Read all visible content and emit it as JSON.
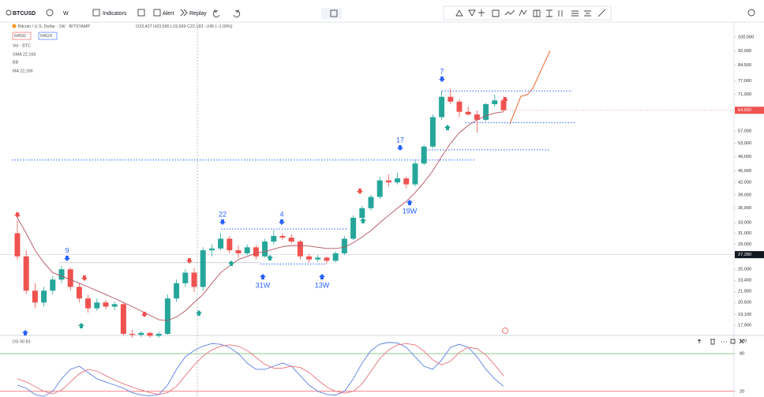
{
  "toolbar": {
    "symbol": "BTCUSD",
    "interval": "W",
    "indicators": "Indicators",
    "alert": "Alert",
    "replay": "Replay"
  },
  "legend": {
    "title": "Bitcoin / U.S. Dollar · 1W · BITSTAMP",
    "ohlc": "O23,427 H23,590 L19,569 C22,183 −245 (−1.09%)",
    "sell": "64592",
    "buy": "64624",
    "vol": "Vol · BTC",
    "sma": "SMA 22,166",
    "bb": "BB",
    "ma": "MA 22,166"
  },
  "chart_data": {
    "type": "candlestick",
    "log": true,
    "ylim": [
      16840,
      107300
    ],
    "yticks": [
      {
        "value": 100000,
        "label": "100,000"
      },
      {
        "value": 92000,
        "label": "92,000"
      },
      {
        "value": 84500,
        "label": "84,500"
      },
      {
        "value": 77000,
        "label": "77,000"
      },
      {
        "value": 71000,
        "label": "71,000"
      },
      {
        "value": 57000,
        "label": "57,000"
      },
      {
        "value": 53000,
        "label": "53,000"
      },
      {
        "value": 49000,
        "label": "49,000"
      },
      {
        "value": 45000,
        "label": "45,000"
      },
      {
        "value": 42000,
        "label": "42,000"
      },
      {
        "value": 39000,
        "label": "39,000"
      },
      {
        "value": 36000,
        "label": "36,000"
      },
      {
        "value": 33000,
        "label": "33,000"
      },
      {
        "value": 31000,
        "label": "31,000"
      },
      {
        "value": 29000,
        "label": "29,000"
      },
      {
        "value": 25000,
        "label": "25,000"
      },
      {
        "value": 23400,
        "label": "23,400"
      },
      {
        "value": 21900,
        "label": "21,900"
      },
      {
        "value": 20500,
        "label": "20,500"
      },
      {
        "value": 19100,
        "label": "19,100"
      },
      {
        "value": 17900,
        "label": "17,900"
      }
    ],
    "up_color": "#26a69a",
    "down_color": "#ef5350",
    "ma_color": "#b2545f",
    "candles": [
      [
        31000,
        33500,
        26500,
        27000
      ],
      [
        27000,
        28000,
        21500,
        22000
      ],
      [
        22000,
        23000,
        19800,
        20500
      ],
      [
        20500,
        22500,
        20000,
        22000
      ],
      [
        22000,
        24000,
        21500,
        23500
      ],
      [
        23500,
        25500,
        23000,
        25000
      ],
      [
        25000,
        25300,
        22000,
        22500
      ],
      [
        22500,
        23000,
        20500,
        21000
      ],
      [
        21000,
        21500,
        19300,
        19800
      ],
      [
        19800,
        21000,
        19500,
        20500
      ],
      [
        20500,
        20800,
        19700,
        20000
      ],
      [
        20000,
        20600,
        19600,
        20300
      ],
      [
        20300,
        20500,
        16800,
        17000
      ],
      [
        17000,
        17400,
        16600,
        16900
      ],
      [
        16900,
        17300,
        16700,
        17100
      ],
      [
        17100,
        17200,
        16600,
        16800
      ],
      [
        16800,
        17200,
        16600,
        17000
      ],
      [
        17000,
        21500,
        16900,
        21000
      ],
      [
        21000,
        23500,
        20600,
        23000
      ],
      [
        23000,
        25000,
        22500,
        24500
      ],
      [
        24500,
        25200,
        21800,
        22500
      ],
      [
        22500,
        28500,
        22000,
        28000
      ],
      [
        28000,
        29000,
        27000,
        28300
      ],
      [
        28300,
        31000,
        28000,
        30000
      ],
      [
        30000,
        30500,
        27500,
        28000
      ],
      [
        28000,
        28800,
        26800,
        27500
      ],
      [
        27500,
        29000,
        27200,
        28500
      ],
      [
        28500,
        28900,
        26500,
        27000
      ],
      [
        27000,
        30000,
        26800,
        29500
      ],
      [
        29500,
        31500,
        29000,
        30500
      ],
      [
        30500,
        31000,
        29800,
        30200
      ],
      [
        30200,
        30800,
        29200,
        29500
      ],
      [
        29500,
        29800,
        26500,
        27000
      ],
      [
        27000,
        27400,
        26000,
        26500
      ],
      [
        26500,
        27200,
        26100,
        26800
      ],
      [
        26800,
        27000,
        25800,
        26300
      ],
      [
        26300,
        27800,
        26000,
        27500
      ],
      [
        27500,
        30500,
        27200,
        30000
      ],
      [
        30000,
        34500,
        29800,
        34000
      ],
      [
        34000,
        36500,
        33500,
        36000
      ],
      [
        36000,
        39000,
        35500,
        38500
      ],
      [
        38500,
        43500,
        38000,
        42500
      ],
      [
        42500,
        44000,
        41000,
        42000
      ],
      [
        42000,
        44500,
        41500,
        43000
      ],
      [
        43000,
        43500,
        40500,
        41500
      ],
      [
        41500,
        48000,
        41000,
        47000
      ],
      [
        47000,
        52500,
        46500,
        52000
      ],
      [
        52000,
        63000,
        51500,
        62000
      ],
      [
        62000,
        72500,
        61000,
        70000
      ],
      [
        70000,
        73500,
        67000,
        68000
      ],
      [
        68000,
        69000,
        62000,
        64000
      ],
      [
        64000,
        66000,
        62500,
        63000
      ],
      [
        63000,
        64500,
        56500,
        61000
      ],
      [
        61000,
        67500,
        60500,
        67000
      ],
      [
        67000,
        71000,
        66000,
        68500
      ],
      [
        68500,
        70000,
        64000,
        64592
      ]
    ],
    "ma": [
      34000,
      31000,
      28000,
      26000,
      24500,
      24000,
      23500,
      23000,
      22500,
      22000,
      21500,
      21000,
      20500,
      20000,
      19500,
      19000,
      18500,
      18400,
      18800,
      19500,
      20500,
      21500,
      23000,
      24500,
      25500,
      26500,
      27000,
      27500,
      27800,
      28200,
      28600,
      28800,
      28800,
      28700,
      28500,
      28300,
      28300,
      28500,
      29300,
      30300,
      31500,
      33000,
      34500,
      36000,
      37500,
      39500,
      42000,
      45000,
      49000,
      53000,
      56500,
      59000,
      61000,
      62500,
      63500,
      64000
    ],
    "levels": [
      72500,
      60000,
      51000,
      48000,
      31800,
      25800,
      26000
    ],
    "level_color": "#2962ff",
    "markers": [
      "9",
      "22",
      "4",
      "7",
      "17",
      "31W",
      "13W",
      "19W"
    ],
    "last_price": {
      "value": 64592,
      "label": "64,592"
    },
    "crosshair": {
      "value": 27280,
      "label": "27,280"
    }
  },
  "oscillator": {
    "name": "DS 90 83",
    "ylim": [
      11,
      109
    ],
    "yticks": [
      20,
      80,
      100
    ],
    "bands": [
      {
        "value": 80,
        "color": "#4caf50"
      },
      {
        "value": 20,
        "color": "#f23645"
      }
    ],
    "series": [
      {
        "color": "#5b7fe0",
        "values": [
          30,
          25,
          15,
          12,
          20,
          40,
          55,
          60,
          50,
          40,
          35,
          30,
          25,
          18,
          14,
          13,
          15,
          30,
          55,
          75,
          85,
          92,
          96,
          95,
          90,
          80,
          65,
          55,
          55,
          60,
          65,
          60,
          45,
          30,
          20,
          15,
          14,
          20,
          40,
          65,
          85,
          95,
          98,
          97,
          90,
          75,
          60,
          55,
          70,
          90,
          95,
          90,
          75,
          55,
          40,
          28
        ]
      },
      {
        "color": "#e8737a",
        "values": [
          40,
          35,
          28,
          20,
          16,
          22,
          35,
          48,
          55,
          52,
          45,
          38,
          32,
          27,
          22,
          18,
          15,
          18,
          28,
          45,
          62,
          76,
          86,
          92,
          94,
          92,
          85,
          74,
          63,
          57,
          57,
          60,
          58,
          50,
          38,
          27,
          20,
          17,
          20,
          32,
          52,
          72,
          86,
          94,
          96,
          94,
          84,
          70,
          62,
          68,
          82,
          90,
          88,
          78,
          62,
          45
        ]
      }
    ]
  }
}
